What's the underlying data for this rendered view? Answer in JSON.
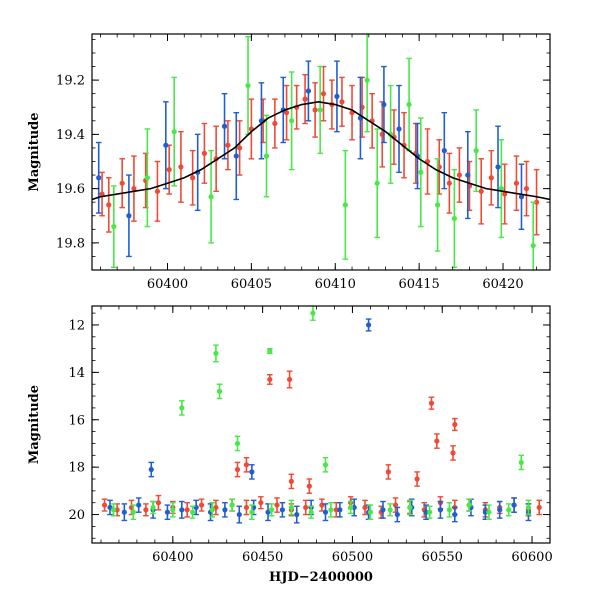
{
  "colors": {
    "green": "#48e848",
    "blue": "#1f5fd0",
    "red": "#ef4a35",
    "model": "#000000"
  },
  "chart_data": [
    {
      "type": "scatter",
      "title": "",
      "xlabel": "",
      "ylabel": "Magnitude",
      "xlim": [
        60395.5,
        60422.8
      ],
      "ylim": [
        19.9,
        19.03
      ],
      "y_reversed": true,
      "grid": false,
      "x_ticks": [
        60400,
        60405,
        60410,
        60415,
        60420
      ],
      "x_tick_labels": [
        "60400",
        "60405",
        "60410",
        "60415",
        "60420"
      ],
      "y_ticks": [
        19.2,
        19.4,
        19.6,
        19.8
      ],
      "y_tick_labels": [
        "19.2",
        "19.4",
        "19.6",
        "19.8"
      ],
      "model_curve": {
        "type": "line",
        "x": [
          60395.5,
          60396,
          60397,
          60398,
          60399,
          60400,
          60401,
          60402,
          60403,
          60404,
          60405,
          60406,
          60407,
          60408,
          60409,
          60410,
          60411,
          60412,
          60413,
          60414,
          60415,
          60416,
          60417,
          60418,
          60419,
          60420,
          60421,
          60422,
          60422.8
        ],
        "y": [
          19.64,
          19.63,
          19.62,
          19.61,
          19.6,
          19.58,
          19.56,
          19.53,
          19.49,
          19.45,
          19.39,
          19.34,
          19.31,
          19.29,
          19.28,
          19.29,
          19.31,
          19.35,
          19.39,
          19.44,
          19.49,
          19.53,
          19.56,
          19.58,
          19.6,
          19.61,
          19.62,
          19.63,
          19.64
        ]
      },
      "series": [
        {
          "color_key": "red",
          "x": [
            60396.1,
            60396.5,
            60397.3,
            60398.0,
            60398.7,
            60399.4,
            60400.1,
            60400.8,
            60401.5,
            60402.2,
            60402.9,
            60403.6,
            60404.3,
            60405.0,
            60405.7,
            60406.4,
            60407.1,
            60407.7,
            60408.2,
            60408.8,
            60409.3,
            60409.8,
            60410.4,
            60411.0,
            60411.6,
            60412.2,
            60412.8,
            60413.5,
            60414.1,
            60414.8,
            60415.5,
            60416.2,
            60416.8,
            60417.4,
            60418.0,
            60418.7,
            60419.3,
            60420.1,
            60420.8,
            60421.4,
            60422.0
          ],
          "y": [
            19.62,
            19.66,
            19.58,
            19.6,
            19.57,
            19.61,
            19.53,
            19.52,
            19.56,
            19.47,
            19.49,
            19.44,
            19.45,
            19.38,
            19.35,
            19.36,
            19.32,
            19.3,
            19.27,
            19.31,
            19.25,
            19.29,
            19.28,
            19.32,
            19.3,
            19.35,
            19.4,
            19.41,
            19.44,
            19.47,
            19.5,
            19.52,
            19.58,
            19.55,
            19.59,
            19.61,
            19.56,
            19.62,
            19.58,
            19.6,
            19.65
          ],
          "err": [
            0.08,
            0.1,
            0.09,
            0.12,
            0.1,
            0.11,
            0.09,
            0.13,
            0.1,
            0.11,
            0.12,
            0.09,
            0.1,
            0.11,
            0.08,
            0.09,
            0.1,
            0.08,
            0.09,
            0.1,
            0.1,
            0.09,
            0.09,
            0.1,
            0.11,
            0.1,
            0.12,
            0.1,
            0.12,
            0.11,
            0.12,
            0.1,
            0.11,
            0.1,
            0.09,
            0.12,
            0.1,
            0.11,
            0.1,
            0.1,
            0.12
          ]
        },
        {
          "color_key": "blue",
          "x": [
            60395.9,
            60397.7,
            60399.9,
            60401.8,
            60403.4,
            60404.1,
            60405.6,
            60406.9,
            60408.4,
            60410.1,
            60411.5,
            60412.9,
            60413.8,
            60414.9,
            60416.5,
            60417.9,
            60419.7,
            60421.1
          ],
          "y": [
            19.56,
            19.7,
            19.44,
            19.54,
            19.37,
            19.48,
            19.35,
            19.31,
            19.24,
            19.26,
            19.34,
            19.29,
            19.38,
            19.48,
            19.46,
            19.55,
            19.52,
            19.63
          ],
          "err": [
            0.13,
            0.15,
            0.16,
            0.14,
            0.12,
            0.16,
            0.14,
            0.12,
            0.11,
            0.13,
            0.15,
            0.14,
            0.16,
            0.12,
            0.14,
            0.16,
            0.15,
            0.12
          ]
        },
        {
          "color_key": "green",
          "x": [
            60396.8,
            60398.8,
            60400.4,
            60402.6,
            60404.8,
            60405.9,
            60407.4,
            60409.1,
            60410.6,
            60411.9,
            60412.5,
            60413.3,
            60414.4,
            60415.1,
            60416.1,
            60417.1,
            60418.4,
            60419.9,
            60421.8
          ],
          "y": [
            19.74,
            19.56,
            19.39,
            19.63,
            19.22,
            19.48,
            19.35,
            19.31,
            19.66,
            19.2,
            19.58,
            19.4,
            19.29,
            19.54,
            19.66,
            19.71,
            19.46,
            19.6,
            19.81
          ],
          "err": [
            0.15,
            0.18,
            0.2,
            0.17,
            0.18,
            0.15,
            0.18,
            0.16,
            0.2,
            0.19,
            0.2,
            0.18,
            0.17,
            0.2,
            0.17,
            0.18,
            0.15,
            0.18,
            0.16
          ]
        }
      ]
    },
    {
      "type": "scatter",
      "title": "",
      "xlabel": "HJD−2400000",
      "ylabel": "Magnitude",
      "xlim": [
        60355,
        60610
      ],
      "ylim": [
        21.2,
        11.2
      ],
      "y_reversed": true,
      "grid": false,
      "x_ticks": [
        60400,
        60450,
        60500,
        60550,
        60600
      ],
      "x_tick_labels": [
        "60400",
        "60450",
        "60500",
        "60550",
        "60600"
      ],
      "y_ticks": [
        12,
        14,
        16,
        18,
        20
      ],
      "y_tick_labels": [
        "12",
        "14",
        "16",
        "18",
        "20"
      ],
      "series": [
        {
          "color_key": "red",
          "x": [
            60362,
            60369,
            60377,
            60385,
            60392,
            60400,
            60408,
            60416,
            60424,
            60433,
            60441,
            60449,
            60458,
            60466,
            60474,
            60483,
            60491,
            60499,
            60507,
            60516,
            60524,
            60532,
            60540,
            60549,
            60557,
            60565,
            60574,
            60582,
            60590,
            60598,
            60604,
            60454,
            60465,
            60436,
            60441,
            60544,
            60547,
            60557,
            60536,
            60466,
            60476,
            60556,
            60520
          ],
          "y": [
            19.6,
            19.8,
            19.7,
            19.8,
            19.5,
            19.7,
            19.8,
            19.6,
            19.7,
            19.6,
            19.7,
            19.5,
            19.6,
            19.8,
            19.7,
            19.6,
            19.8,
            19.5,
            19.7,
            19.9,
            19.6,
            19.7,
            19.8,
            19.5,
            19.7,
            19.6,
            19.8,
            19.7,
            19.6,
            19.8,
            19.7,
            14.3,
            14.3,
            18.1,
            17.9,
            15.3,
            16.9,
            16.2,
            18.5,
            18.6,
            18.8,
            17.4,
            18.2
          ],
          "err": [
            0.25,
            0.25,
            0.3,
            0.25,
            0.3,
            0.25,
            0.3,
            0.25,
            0.3,
            0.25,
            0.3,
            0.25,
            0.3,
            0.25,
            0.3,
            0.25,
            0.3,
            0.25,
            0.3,
            0.25,
            0.3,
            0.25,
            0.3,
            0.25,
            0.3,
            0.25,
            0.3,
            0.25,
            0.3,
            0.25,
            0.3,
            0.2,
            0.35,
            0.3,
            0.3,
            0.25,
            0.3,
            0.25,
            0.3,
            0.3,
            0.3,
            0.3,
            0.3
          ]
        },
        {
          "color_key": "blue",
          "x": [
            60365,
            60373,
            60381,
            60389,
            60397,
            60405,
            60413,
            60421,
            60429,
            60437,
            60445,
            60453,
            60461,
            60469,
            60477,
            60485,
            60493,
            60501,
            60509,
            60517,
            60525,
            60533,
            60541,
            60549,
            60557,
            60566,
            60574,
            60582,
            60590,
            60598,
            60509,
            60444,
            60388
          ],
          "y": [
            19.7,
            19.9,
            19.6,
            19.8,
            19.9,
            19.8,
            19.7,
            19.9,
            19.8,
            20.0,
            19.7,
            19.9,
            19.8,
            20.0,
            19.7,
            19.9,
            19.8,
            19.7,
            19.9,
            19.8,
            20.0,
            19.7,
            19.9,
            19.8,
            20.0,
            19.7,
            19.9,
            19.8,
            19.6,
            19.9,
            12.0,
            18.2,
            18.1
          ],
          "err": [
            0.3,
            0.35,
            0.3,
            0.35,
            0.3,
            0.35,
            0.3,
            0.35,
            0.3,
            0.35,
            0.3,
            0.35,
            0.3,
            0.35,
            0.3,
            0.35,
            0.3,
            0.35,
            0.3,
            0.35,
            0.3,
            0.35,
            0.3,
            0.35,
            0.3,
            0.35,
            0.3,
            0.35,
            0.3,
            0.35,
            0.25,
            0.3,
            0.3
          ]
        },
        {
          "color_key": "green",
          "x": [
            60367,
            60378,
            60389,
            60400,
            60411,
            60422,
            60433,
            60444,
            60455,
            60466,
            60477,
            60488,
            60499,
            60510,
            60521,
            60532,
            60543,
            60554,
            60565,
            60576,
            60587,
            60598,
            60478,
            60424,
            60426,
            60405,
            60454,
            60436,
            60485,
            60594
          ],
          "y": [
            19.8,
            19.9,
            19.7,
            19.8,
            19.9,
            19.8,
            19.6,
            19.9,
            19.8,
            19.7,
            19.9,
            19.8,
            19.7,
            19.9,
            19.8,
            19.7,
            19.9,
            19.8,
            19.6,
            19.9,
            19.8,
            19.7,
            11.5,
            13.2,
            14.8,
            15.5,
            13.1,
            17.0,
            17.9,
            17.8
          ],
          "err": [
            0.25,
            0.3,
            0.25,
            0.3,
            0.25,
            0.3,
            0.25,
            0.3,
            0.25,
            0.3,
            0.25,
            0.3,
            0.25,
            0.3,
            0.25,
            0.3,
            0.25,
            0.3,
            0.25,
            0.3,
            0.25,
            0.3,
            0.3,
            0.35,
            0.3,
            0.3,
            0.1,
            0.3,
            0.3,
            0.3
          ]
        }
      ]
    }
  ]
}
